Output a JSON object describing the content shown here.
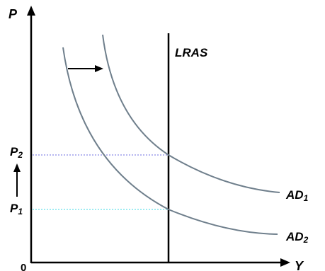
{
  "axes": {
    "y_label": "P",
    "x_label": "Y",
    "origin_label": "0"
  },
  "lines": {
    "lras_label": "LRAS"
  },
  "curves": {
    "ad1_label": "AD",
    "ad1_subscript": "1",
    "ad2_label": "AD",
    "ad2_subscript": "2"
  },
  "price_levels": {
    "p2_label": "P",
    "p2_subscript": "2",
    "p1_label": "P",
    "p1_subscript": "1"
  },
  "colors": {
    "axis": "#000000",
    "curve": "#6f7f8c",
    "p2_guide": "#8a8ae6",
    "p1_guide": "#7fe6ee"
  },
  "icons": {
    "shift_arrow": "right-arrow-icon",
    "price_rise_arrow": "up-arrow-icon"
  }
}
